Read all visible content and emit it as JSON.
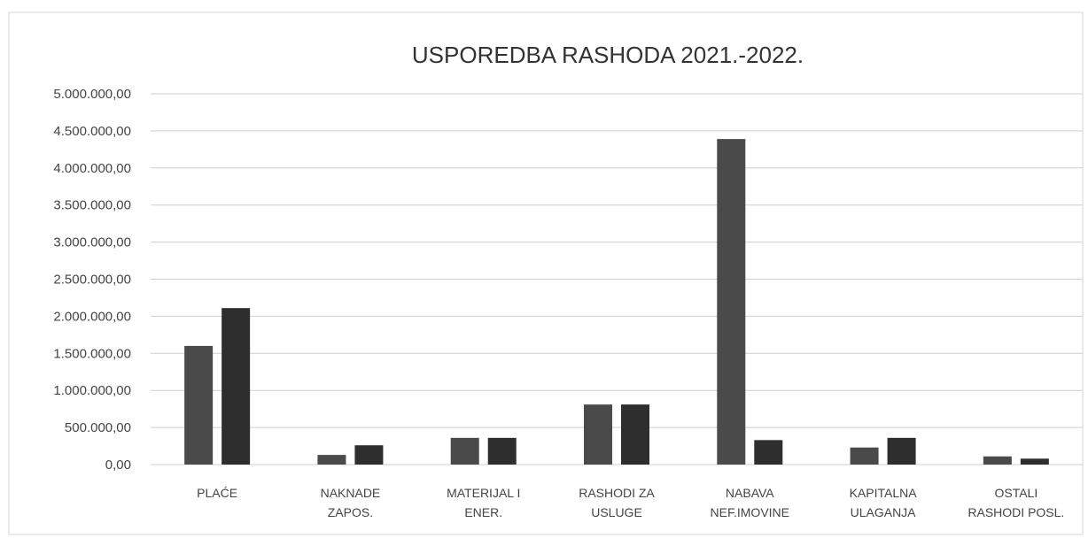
{
  "chart_data": {
    "type": "bar",
    "title": "USPOREDBA RASHODA 2021.-2022.",
    "categories": [
      [
        "PLAĆE"
      ],
      [
        "NAKNADE",
        "ZAPOS."
      ],
      [
        "MATERIJAL I",
        "ENER."
      ],
      [
        "RASHODI ZA",
        "USLUGE"
      ],
      [
        "NABAVA",
        "NEF.IMOVINE"
      ],
      [
        "KAPITALNA",
        "ULAGANJA"
      ],
      [
        "OSTALI",
        "RASHODI POSL."
      ]
    ],
    "series": [
      {
        "values": [
          1600000,
          130000,
          360000,
          810000,
          4390000,
          230000,
          110000
        ],
        "color": "#4a4a4a"
      },
      {
        "values": [
          2110000,
          260000,
          360000,
          810000,
          330000,
          360000,
          80000
        ],
        "color": "#2e2e2e"
      }
    ],
    "yticks": [
      "0,00",
      "500.000,00",
      "1.000.000,00",
      "1.500.000,00",
      "2.000.000,00",
      "2.500.000,00",
      "3.000.000,00",
      "3.500.000,00",
      "4.000.000,00",
      "4.500.000,00",
      "5.000.000,00"
    ],
    "ylim": [
      0,
      5000000
    ],
    "grid": true,
    "xlabel": "",
    "ylabel": ""
  }
}
